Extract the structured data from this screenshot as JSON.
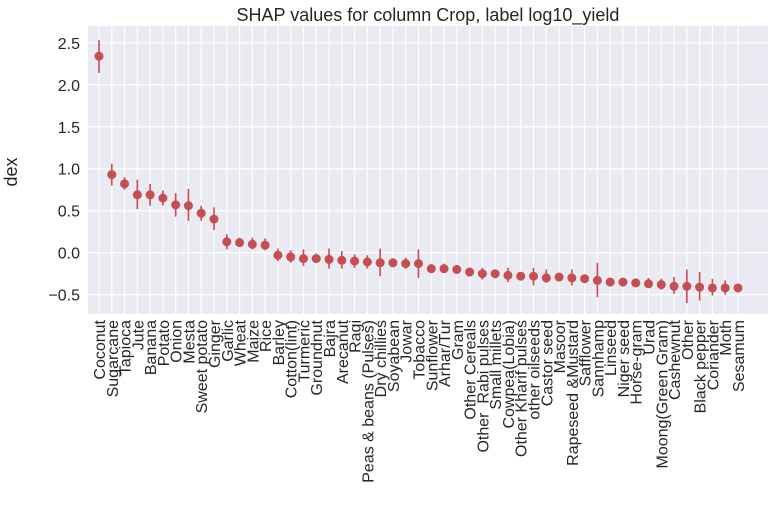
{
  "chart_data": {
    "type": "scatter",
    "title": "SHAP values for column Crop, label log10_yield",
    "xlabel": "",
    "ylabel": "dex",
    "ylim": [
      -0.73,
      2.7
    ],
    "yticks": [
      2.5,
      2.0,
      1.5,
      1.0,
      0.5,
      0.0,
      -0.5
    ],
    "ytick_labels": [
      "2.5",
      "2.0",
      "1.5",
      "1.0",
      "0.5",
      "0.0",
      "−0.5"
    ],
    "grid": true,
    "background": "#eaeaf2",
    "point_color": "#c44e52",
    "categories": [
      "Coconut",
      "Sugarcane",
      "Tapioca",
      "Jute",
      "Banana",
      "Potato",
      "Onion",
      "Mesta",
      "Sweet potato",
      "Ginger",
      "Garlic",
      "Wheat",
      "Maize",
      "Rice",
      "Barley",
      "Cotton(lint)",
      "Turmeric",
      "Groundnut",
      "Bajra",
      "Arecanut",
      "Ragi",
      "Peas & beans (Pulses)",
      "Dry chillies",
      "Soyabean",
      "Jowar",
      "Tobacco",
      "Sunflower",
      "Arhar/Tur",
      "Gram",
      "Other Cereals",
      "Other  Rabi pulses",
      "Small millets",
      "Cowpea(Lobia)",
      "Other Kharif pulses",
      "other oilseeds",
      "Castor seed",
      "Masoor",
      "Rapeseed &Mustard",
      "Safflower",
      "Sannhamp",
      "Linseed",
      "Niger seed",
      "Horse-gram",
      "Urad",
      "Moong(Green Gram)",
      "Cashewnut",
      "Other",
      "Black pepper",
      "Coriander",
      "Moth",
      "Sesamum"
    ],
    "values": [
      2.34,
      0.93,
      0.82,
      0.69,
      0.69,
      0.65,
      0.57,
      0.56,
      0.47,
      0.4,
      0.13,
      0.12,
      0.1,
      0.09,
      -0.03,
      -0.05,
      -0.07,
      -0.07,
      -0.08,
      -0.09,
      -0.1,
      -0.11,
      -0.12,
      -0.12,
      -0.13,
      -0.13,
      -0.19,
      -0.19,
      -0.2,
      -0.23,
      -0.25,
      -0.25,
      -0.27,
      -0.28,
      -0.28,
      -0.3,
      -0.29,
      -0.3,
      -0.31,
      -0.33,
      -0.35,
      -0.35,
      -0.36,
      -0.37,
      -0.38,
      -0.4,
      -0.4,
      -0.41,
      -0.42,
      -0.42,
      -0.42
    ],
    "error_low": [
      2.14,
      0.8,
      0.75,
      0.52,
      0.56,
      0.56,
      0.43,
      0.38,
      0.38,
      0.27,
      0.04,
      0.07,
      0.04,
      0.03,
      -0.1,
      -0.12,
      -0.16,
      -0.12,
      -0.19,
      -0.19,
      -0.18,
      -0.19,
      -0.28,
      -0.16,
      -0.19,
      -0.3,
      -0.23,
      -0.24,
      -0.25,
      -0.27,
      -0.32,
      -0.29,
      -0.35,
      -0.32,
      -0.39,
      -0.36,
      -0.34,
      -0.39,
      -0.34,
      -0.53,
      -0.38,
      -0.39,
      -0.39,
      -0.42,
      -0.44,
      -0.49,
      -0.6,
      -0.57,
      -0.51,
      -0.5,
      -0.45
    ],
    "error_high": [
      2.53,
      1.06,
      0.9,
      0.87,
      0.82,
      0.74,
      0.71,
      0.76,
      0.56,
      0.54,
      0.22,
      0.18,
      0.18,
      0.17,
      0.05,
      0.03,
      0.04,
      -0.01,
      0.05,
      0.02,
      -0.02,
      -0.03,
      0.05,
      -0.08,
      -0.06,
      0.04,
      -0.14,
      -0.13,
      -0.15,
      -0.19,
      -0.18,
      -0.22,
      -0.18,
      -0.25,
      -0.18,
      -0.2,
      -0.25,
      -0.2,
      -0.28,
      -0.12,
      -0.31,
      -0.32,
      -0.33,
      -0.3,
      -0.31,
      -0.29,
      -0.2,
      -0.23,
      -0.31,
      -0.33,
      -0.39
    ]
  }
}
